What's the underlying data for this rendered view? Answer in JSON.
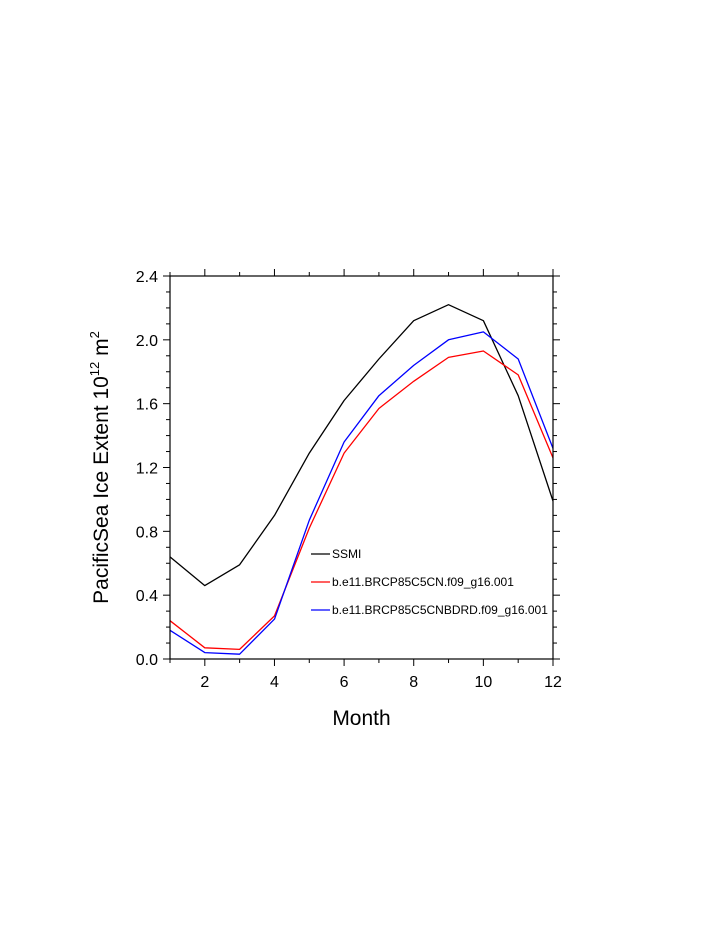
{
  "chart_data": {
    "type": "line",
    "title": "",
    "xlabel": "Month",
    "ylabel_parts": {
      "prefix": "PacificSea Ice Extent 10",
      "exp1": "12",
      "unit": " m",
      "exp2": "2"
    },
    "xlim": [
      1,
      12
    ],
    "ylim": [
      0.0,
      2.4
    ],
    "x_ticks": [
      2,
      4,
      6,
      8,
      10,
      12
    ],
    "x_tick_labels": [
      "2",
      "4",
      "6",
      "8",
      "10",
      "12"
    ],
    "y_ticks": [
      0.0,
      0.4,
      0.8,
      1.2,
      1.6,
      2.0,
      2.4
    ],
    "y_tick_labels": [
      "0.0",
      "0.4",
      "0.8",
      "1.2",
      "1.6",
      "2.0",
      "2.4"
    ],
    "grid": false,
    "legend_position": "inside lower-right",
    "x": [
      1,
      2,
      3,
      4,
      5,
      6,
      7,
      8,
      9,
      10,
      11,
      12
    ],
    "series": [
      {
        "name": "SSMI",
        "color": "#000000",
        "values": [
          0.64,
          0.46,
          0.59,
          0.9,
          1.29,
          1.62,
          1.88,
          2.12,
          2.22,
          2.12,
          1.65,
          0.99
        ]
      },
      {
        "name": "b.e11.BRCP85C5CN.f09_g16.001",
        "color": "#ff0000",
        "values": [
          0.24,
          0.07,
          0.06,
          0.27,
          0.82,
          1.29,
          1.57,
          1.74,
          1.89,
          1.93,
          1.78,
          1.26
        ]
      },
      {
        "name": "b.e11.BRCP85C5CNBDRD.f09_g16.001",
        "color": "#0000ff",
        "values": [
          0.18,
          0.04,
          0.03,
          0.25,
          0.87,
          1.36,
          1.65,
          1.84,
          2.0,
          2.05,
          1.88,
          1.32
        ]
      }
    ]
  }
}
